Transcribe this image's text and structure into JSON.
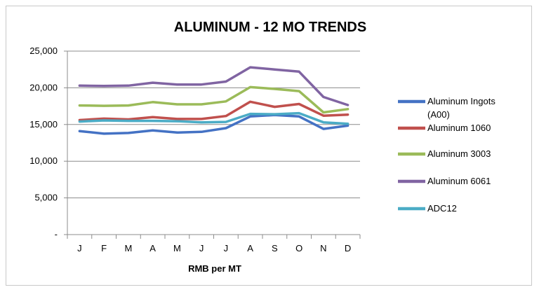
{
  "chart_data": {
    "type": "line",
    "title": "ALUMINUM - 12 MO TRENDS",
    "xlabel": "RMB per MT",
    "ylabel": "",
    "categories": [
      "J",
      "F",
      "M",
      "A",
      "M",
      "J",
      "J",
      "A",
      "S",
      "O",
      "N",
      "D"
    ],
    "ylim": [
      0,
      25000
    ],
    "yticks": [
      0,
      5000,
      10000,
      15000,
      20000,
      25000
    ],
    "ytick_labels": [
      "-",
      "5,000",
      "10,000",
      "15,000",
      "20,000",
      "25,000"
    ],
    "grid": true,
    "legend_position": "right",
    "series": [
      {
        "name": "Aluminum Ingots (A00)",
        "color": "#4472C4",
        "values": [
          14100,
          13750,
          13850,
          14200,
          13900,
          14000,
          14500,
          16100,
          16300,
          16100,
          14400,
          14850
        ]
      },
      {
        "name": "Aluminum 1060",
        "color": "#C0504D",
        "values": [
          15600,
          15800,
          15700,
          16000,
          15750,
          15750,
          16150,
          18100,
          17400,
          17800,
          16200,
          16350
        ]
      },
      {
        "name": "Aluminum 3003",
        "color": "#9BBB59",
        "values": [
          17600,
          17550,
          17600,
          18050,
          17750,
          17750,
          18150,
          20100,
          19850,
          19550,
          16650,
          17100
        ]
      },
      {
        "name": "Aluminum 6061",
        "color": "#8064A2",
        "values": [
          20300,
          20250,
          20300,
          20700,
          20450,
          20450,
          20850,
          22800,
          22500,
          22200,
          18750,
          17650
        ]
      },
      {
        "name": "ADC12",
        "color": "#4BACC6",
        "values": [
          15400,
          15550,
          15500,
          15500,
          15450,
          15300,
          15350,
          16450,
          16400,
          16550,
          15300,
          15100
        ]
      }
    ]
  }
}
